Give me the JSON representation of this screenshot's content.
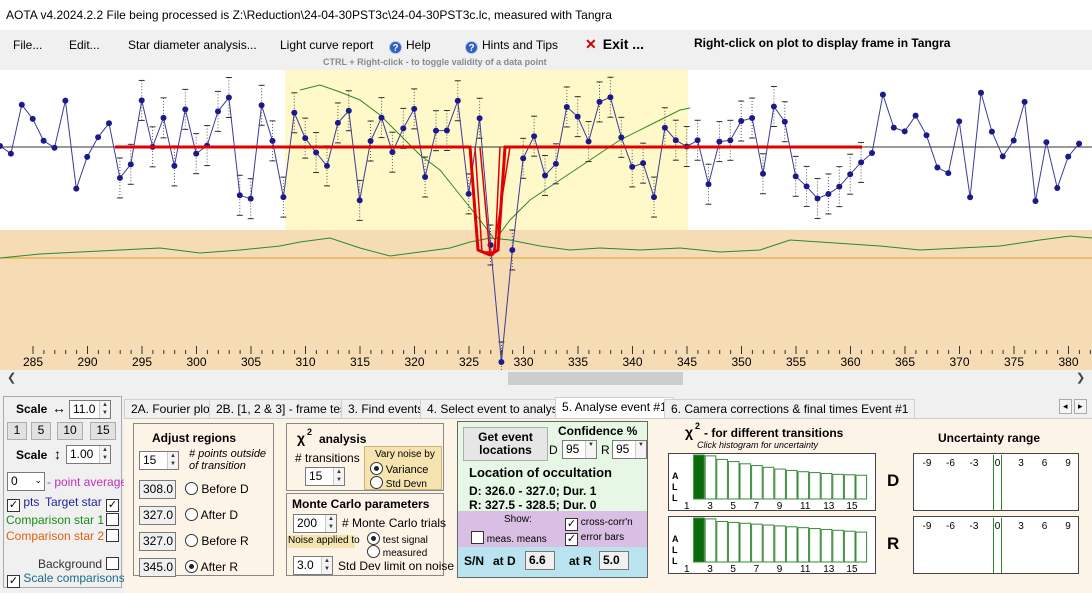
{
  "titlebar": {
    "text": "AOTA v4.2024.2.2    File being processed is Z:\\Reduction\\24-04-30PST3c\\24-04-30PST3c.lc, measured with Tangra"
  },
  "menu": {
    "file": "File...",
    "edit": "Edit...",
    "star_diameter": "Star diameter analysis...",
    "light_curve": "Light curve report",
    "help": "Help",
    "hints": "Hints and Tips",
    "exit": "Exit ...",
    "right_click_hint": "Right-click on plot to display frame in Tangra",
    "ctrl_hint": "CTRL + Right-click  -  to toggle validity of a data point"
  },
  "icons": {
    "help": "help-icon",
    "hints": "help-icon",
    "exit": "close-icon"
  },
  "colors": {
    "target": "#1f1f9a",
    "model": "#e00000",
    "comparison": "#1a8a1a",
    "comparison2": "#e06010",
    "highlight": "#fff8c8",
    "background_band": "#f5dcb4"
  },
  "plot": {
    "x_ticks": [
      "285",
      "290",
      "295",
      "300",
      "305",
      "310",
      "315",
      "320",
      "325",
      "330",
      "335",
      "340",
      "345",
      "350",
      "355",
      "360",
      "365",
      "370",
      "375",
      "380"
    ]
  },
  "scale": {
    "label_h": "Scale",
    "arrow_h": "↔",
    "value_h": "11.0",
    "buttons": [
      "1",
      "5",
      "10",
      "15"
    ],
    "label_v": "Scale",
    "arrow_v": "↕",
    "value_v": "1.00",
    "point_avg_value": "0",
    "point_avg_label": "- point average",
    "pts_label": "pts",
    "target_label": "Target star",
    "comp1_label": "Comparison star 1",
    "comp2_label": "Comparison star 2",
    "background_label": "Background",
    "scale_comparisons_label": "Scale comparisons"
  },
  "tabs": [
    "2A. Fourier plot",
    "2B. [1, 2 & 3] - frame test",
    "3. Find events",
    "4. Select event to analyse",
    "5. Analyse event #1",
    "6. Camera corrections & final times Event #1"
  ],
  "adjust": {
    "title": "Adjust regions",
    "points_value": "15",
    "points_label_1": "# points outside",
    "points_label_2": "of transition",
    "before_d_value": "308.0",
    "before_d": "Before D",
    "after_d_value": "327.0",
    "after_d": "After D",
    "before_r_value": "327.0",
    "before_r": "Before R",
    "after_r_value": "345.0",
    "after_r": "After R"
  },
  "chi2": {
    "symbol": "χ",
    "sup": "2",
    "title": "analysis",
    "transitions_label": "# transitions",
    "transitions_value": "15",
    "vary_noise": "Vary noise by",
    "variance": "Variance",
    "std_devn": "Std Devn"
  },
  "monte_carlo": {
    "title": "Monte Carlo parameters",
    "trials_value": "200",
    "trials_label": "# Monte Carlo trials",
    "noise_applied": "Noise applied to",
    "test_signal": "test signal",
    "measured": "measured",
    "stddev_value": "3.0",
    "stddev_label": "Std Dev limit on noise"
  },
  "location": {
    "get_button_1": "Get event",
    "get_button_2": "locations",
    "confidence": "Confidence %",
    "d_label": "D",
    "d_value": "95",
    "r_label": "R",
    "r_value": "95",
    "title": "Location of occultation",
    "d_line": "D: 326.0 - 327.0; Dur. 1",
    "r_line": "R: 327.5 - 328.5; Dur. 0",
    "show": "Show:",
    "meas_means": "meas. means",
    "cross_corr": "cross-corr'n",
    "error_bars": "error bars",
    "sn": "S/N",
    "at_d": "at D",
    "at_d_value": "6.6",
    "at_r": "at R",
    "at_r_value": "5.0"
  },
  "chi2_hist": {
    "symbol": "χ",
    "sup": "2",
    "title": "- for different transitions",
    "subtitle": "Click histogram for uncertainty",
    "all_label": [
      "A",
      "L",
      "L"
    ],
    "ticks": [
      "1",
      "3",
      "5",
      "7",
      "9",
      "11",
      "13",
      "15"
    ],
    "d": "D",
    "r": "R",
    "heights_d": [
      0.0,
      1.0,
      0.98,
      0.9,
      0.85,
      0.8,
      0.76,
      0.72,
      0.68,
      0.65,
      0.62,
      0.6,
      0.58,
      0.56,
      0.55,
      0.54
    ],
    "heights_r": [
      0.0,
      1.0,
      0.98,
      0.92,
      0.9,
      0.88,
      0.86,
      0.84,
      0.82,
      0.8,
      0.78,
      0.76,
      0.74,
      0.72,
      0.7,
      0.68
    ]
  },
  "uncertainty": {
    "title": "Uncertainty range",
    "ticks": [
      "-9",
      "-6",
      "-3",
      "0",
      "3",
      "6",
      "9"
    ]
  }
}
